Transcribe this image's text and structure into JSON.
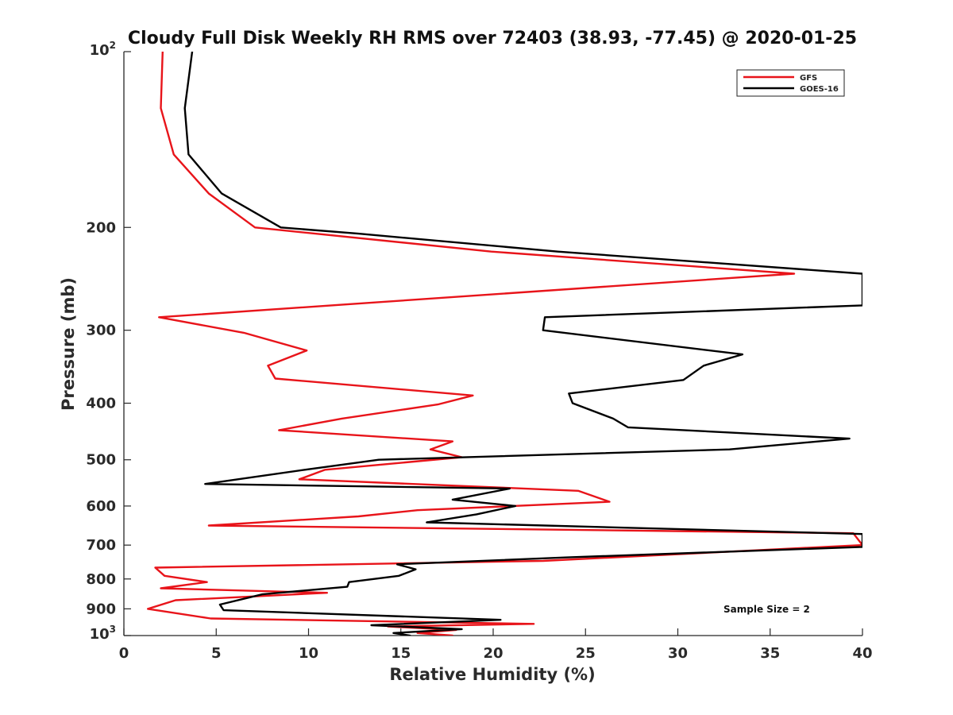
{
  "chart_data": {
    "type": "line",
    "title": "Cloudy Full Disk Weekly RH RMS over 72403 (38.93, -77.45) @ 2020-01-25",
    "xlabel": "Relative Humidity (%)",
    "ylabel": "Pressure (mb)",
    "xlim": [
      0,
      40
    ],
    "ylim": [
      100,
      1000
    ],
    "y_scale": "log",
    "y_reversed": true,
    "grid": false,
    "legend_position": "top-right",
    "annotation": "Sample Size = 2",
    "x_ticks": [
      {
        "value": 0,
        "label": "0"
      },
      {
        "value": 5,
        "label": "5"
      },
      {
        "value": 10,
        "label": "10"
      },
      {
        "value": 15,
        "label": "15"
      },
      {
        "value": 20,
        "label": "20"
      },
      {
        "value": 25,
        "label": "25"
      },
      {
        "value": 30,
        "label": "30"
      },
      {
        "value": 35,
        "label": "35"
      },
      {
        "value": 40,
        "label": "40"
      }
    ],
    "y_ticks": [
      {
        "value": 100,
        "label": "10",
        "sup": "2"
      },
      {
        "value": 200,
        "label": "200",
        "sup": ""
      },
      {
        "value": 300,
        "label": "300",
        "sup": ""
      },
      {
        "value": 400,
        "label": "400",
        "sup": ""
      },
      {
        "value": 500,
        "label": "500",
        "sup": ""
      },
      {
        "value": 600,
        "label": "600",
        "sup": ""
      },
      {
        "value": 700,
        "label": "700",
        "sup": ""
      },
      {
        "value": 800,
        "label": "800",
        "sup": ""
      },
      {
        "value": 900,
        "label": "900",
        "sup": ""
      },
      {
        "value": 1000,
        "label": "10",
        "sup": "3"
      }
    ],
    "series": [
      {
        "name": "GFS",
        "color": "#e8141a",
        "points": [
          [
            2.1,
            100
          ],
          [
            2.0,
            125
          ],
          [
            2.7,
            150
          ],
          [
            4.6,
            175
          ],
          [
            7.1,
            200
          ],
          [
            19.9,
            220
          ],
          [
            36.3,
            240
          ],
          [
            1.9,
            285
          ],
          [
            6.5,
            303
          ],
          [
            9.9,
            325
          ],
          [
            7.8,
            345
          ],
          [
            8.2,
            363
          ],
          [
            18.9,
            388
          ],
          [
            17.0,
            402
          ],
          [
            11.8,
            425
          ],
          [
            8.4,
            445
          ],
          [
            17.8,
            465
          ],
          [
            16.6,
            480
          ],
          [
            18.3,
            495
          ],
          [
            10.9,
            520
          ],
          [
            9.5,
            540
          ],
          [
            24.6,
            565
          ],
          [
            26.3,
            590
          ],
          [
            15.9,
            610
          ],
          [
            12.7,
            625
          ],
          [
            4.6,
            648
          ],
          [
            39.5,
            668
          ],
          [
            40.0,
            700
          ],
          [
            22.7,
            745
          ],
          [
            1.7,
            765
          ],
          [
            2.2,
            790
          ],
          [
            4.5,
            810
          ],
          [
            2.0,
            830
          ],
          [
            11.0,
            845
          ],
          [
            2.8,
            870
          ],
          [
            1.3,
            900
          ],
          [
            4.7,
            935
          ],
          [
            22.2,
            955
          ],
          [
            14.3,
            965
          ],
          [
            18.0,
            978
          ],
          [
            15.9,
            990
          ],
          [
            17.8,
            1000
          ]
        ]
      },
      {
        "name": "GOES-16",
        "color": "#000000",
        "points": [
          [
            3.7,
            100
          ],
          [
            3.3,
            125
          ],
          [
            3.5,
            150
          ],
          [
            5.3,
            175
          ],
          [
            8.5,
            200
          ],
          [
            12.7,
            205
          ],
          [
            23.5,
            220
          ],
          [
            40.0,
            240
          ],
          [
            40.0,
            272
          ],
          [
            22.8,
            285
          ],
          [
            22.7,
            300
          ],
          [
            33.5,
            330
          ],
          [
            31.4,
            345
          ],
          [
            30.3,
            365
          ],
          [
            24.1,
            385
          ],
          [
            24.3,
            400
          ],
          [
            26.5,
            425
          ],
          [
            27.3,
            440
          ],
          [
            39.3,
            460
          ],
          [
            32.8,
            480
          ],
          [
            13.8,
            500
          ],
          [
            9.8,
            520
          ],
          [
            4.4,
            550
          ],
          [
            20.9,
            560
          ],
          [
            17.8,
            585
          ],
          [
            21.2,
            600
          ],
          [
            19.1,
            620
          ],
          [
            16.4,
            640
          ],
          [
            40.0,
            670
          ],
          [
            40.0,
            705
          ],
          [
            23.9,
            735
          ],
          [
            14.8,
            755
          ],
          [
            15.8,
            770
          ],
          [
            14.9,
            790
          ],
          [
            12.2,
            810
          ],
          [
            12.1,
            825
          ],
          [
            7.5,
            850
          ],
          [
            5.2,
            885
          ],
          [
            5.4,
            905
          ],
          [
            20.4,
            940
          ],
          [
            13.4,
            960
          ],
          [
            18.3,
            975
          ],
          [
            14.6,
            990
          ],
          [
            15.5,
            1000
          ]
        ]
      }
    ]
  }
}
